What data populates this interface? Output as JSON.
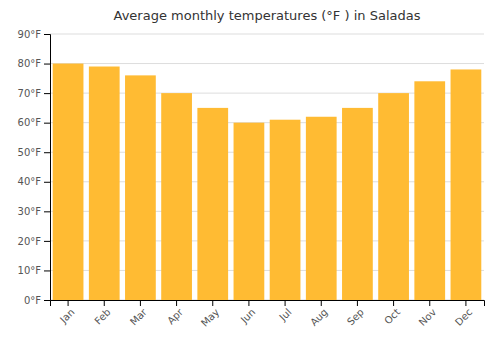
{
  "chart_data": {
    "type": "bar",
    "title": "Average monthly temperatures (°F ) in Saladas",
    "categories": [
      "Jan",
      "Feb",
      "Mar",
      "Apr",
      "May",
      "Jun",
      "Jul",
      "Aug",
      "Sep",
      "Oct",
      "Nov",
      "Dec"
    ],
    "values": [
      80,
      79,
      76,
      70,
      65,
      60,
      61,
      62,
      65,
      70,
      74,
      78
    ],
    "color": "#FFBB33",
    "ylim": [
      0,
      90
    ],
    "yticks": [
      {
        "value": 0,
        "label": "0°F"
      },
      {
        "value": 10,
        "label": "10°F"
      },
      {
        "value": 20,
        "label": "20°F"
      },
      {
        "value": 30,
        "label": "30°F"
      },
      {
        "value": 40,
        "label": "40°F"
      },
      {
        "value": 50,
        "label": "50°F"
      },
      {
        "value": 60,
        "label": "60°F"
      },
      {
        "value": 70,
        "label": "70°F"
      },
      {
        "value": 80,
        "label": "80°F"
      },
      {
        "value": 90,
        "label": "90°F"
      }
    ],
    "grid": true
  }
}
